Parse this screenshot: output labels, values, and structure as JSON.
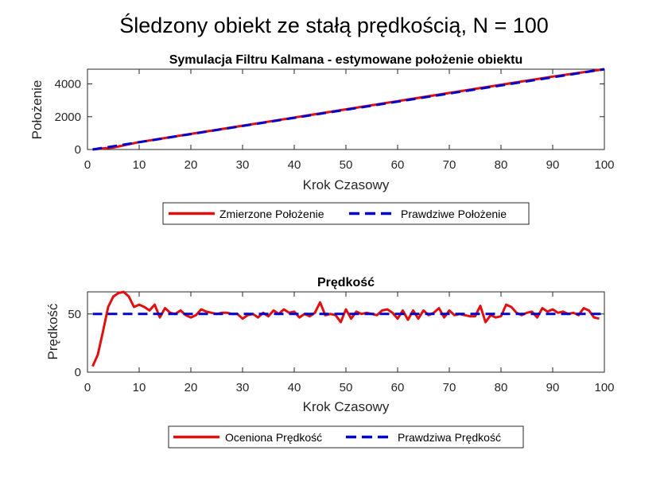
{
  "figure": {
    "suptitle": "Śledzony obiekt ze stałą prędkością, N = 100"
  },
  "chart_data": [
    {
      "type": "line",
      "title": "Symulacja Filtru Kalmana - estymowane położenie obiektu",
      "xlabel": "Krok Czasowy",
      "ylabel": "Położenie",
      "xlim": [
        0,
        100
      ],
      "ylim": [
        0,
        4900
      ],
      "xticks": [
        0,
        10,
        20,
        30,
        40,
        50,
        60,
        70,
        80,
        90,
        100
      ],
      "yticks": [
        0,
        2000,
        4000
      ],
      "xtick_labels": [
        "0",
        "10",
        "20",
        "30",
        "40",
        "50",
        "60",
        "70",
        "80",
        "90",
        "100"
      ],
      "ytick_labels": [
        "0",
        "2000",
        "4000"
      ],
      "grid": false,
      "legend_placement": "below",
      "series": [
        {
          "name": "Zmierzone Położenie",
          "color": "#e01010",
          "style": "solid",
          "x": [
            1,
            5,
            10,
            20,
            30,
            40,
            50,
            60,
            70,
            80,
            90,
            100
          ],
          "y": [
            3,
            120,
            450,
            950,
            1450,
            1950,
            2450,
            2950,
            3450,
            3950,
            4450,
            4900
          ]
        },
        {
          "name": "Prawdziwe Położenie",
          "color": "#0000cc",
          "style": "dashed",
          "x": [
            1,
            100
          ],
          "y": [
            0,
            4900
          ]
        }
      ]
    },
    {
      "type": "line",
      "title": "Prędkość",
      "xlabel": "Krok Czasowy",
      "ylabel": "Prędkość",
      "xlim": [
        0,
        100
      ],
      "ylim": [
        0,
        69
      ],
      "xticks": [
        0,
        10,
        20,
        30,
        40,
        50,
        60,
        70,
        80,
        90,
        100
      ],
      "yticks": [
        0,
        50
      ],
      "xtick_labels": [
        "0",
        "10",
        "20",
        "30",
        "40",
        "50",
        "60",
        "70",
        "80",
        "90",
        "100"
      ],
      "ytick_labels": [
        "0",
        "50"
      ],
      "grid": false,
      "legend_placement": "below",
      "series": [
        {
          "name": "Oceniona Prędkość",
          "color": "#e01010",
          "style": "solid",
          "x": [
            1,
            2,
            3,
            4,
            5,
            6,
            7,
            8,
            9,
            10,
            11,
            12,
            13,
            14,
            15,
            16,
            17,
            18,
            19,
            20,
            21,
            22,
            23,
            24,
            25,
            26,
            27,
            28,
            29,
            30,
            31,
            32,
            33,
            34,
            35,
            36,
            37,
            38,
            39,
            40,
            41,
            42,
            43,
            44,
            45,
            46,
            47,
            48,
            49,
            50,
            51,
            52,
            53,
            54,
            55,
            56,
            57,
            58,
            59,
            60,
            61,
            62,
            63,
            64,
            65,
            66,
            67,
            68,
            69,
            70,
            71,
            72,
            73,
            74,
            75,
            76,
            77,
            78,
            79,
            80,
            81,
            82,
            83,
            84,
            85,
            86,
            87,
            88,
            89,
            90,
            91,
            92,
            93,
            94,
            95,
            96,
            97,
            98,
            99
          ],
          "y": [
            5,
            15,
            35,
            56,
            65,
            68,
            69,
            65,
            56,
            58,
            56,
            53,
            58,
            47,
            55,
            51,
            50,
            53,
            49,
            47,
            49,
            54,
            52,
            51,
            50,
            51,
            51,
            50,
            50,
            46,
            49,
            50,
            47,
            51,
            48,
            53,
            50,
            54,
            51,
            52,
            47,
            50,
            48,
            51,
            60,
            49,
            50,
            49,
            43,
            54,
            46,
            52,
            50,
            51,
            50,
            49,
            53,
            54,
            51,
            46,
            53,
            45,
            53,
            46,
            53,
            49,
            51,
            55,
            47,
            53,
            49,
            50,
            49,
            48,
            48,
            57,
            43,
            49,
            47,
            48,
            58,
            56,
            51,
            49,
            51,
            52,
            47,
            55,
            52,
            54,
            51,
            52,
            50,
            51,
            49,
            55,
            53,
            47,
            46
          ]
        },
        {
          "name": "Prawdziwa Prędkość",
          "color": "#0000cc",
          "style": "dashed",
          "x": [
            1,
            100
          ],
          "y": [
            50,
            50
          ]
        }
      ]
    }
  ]
}
